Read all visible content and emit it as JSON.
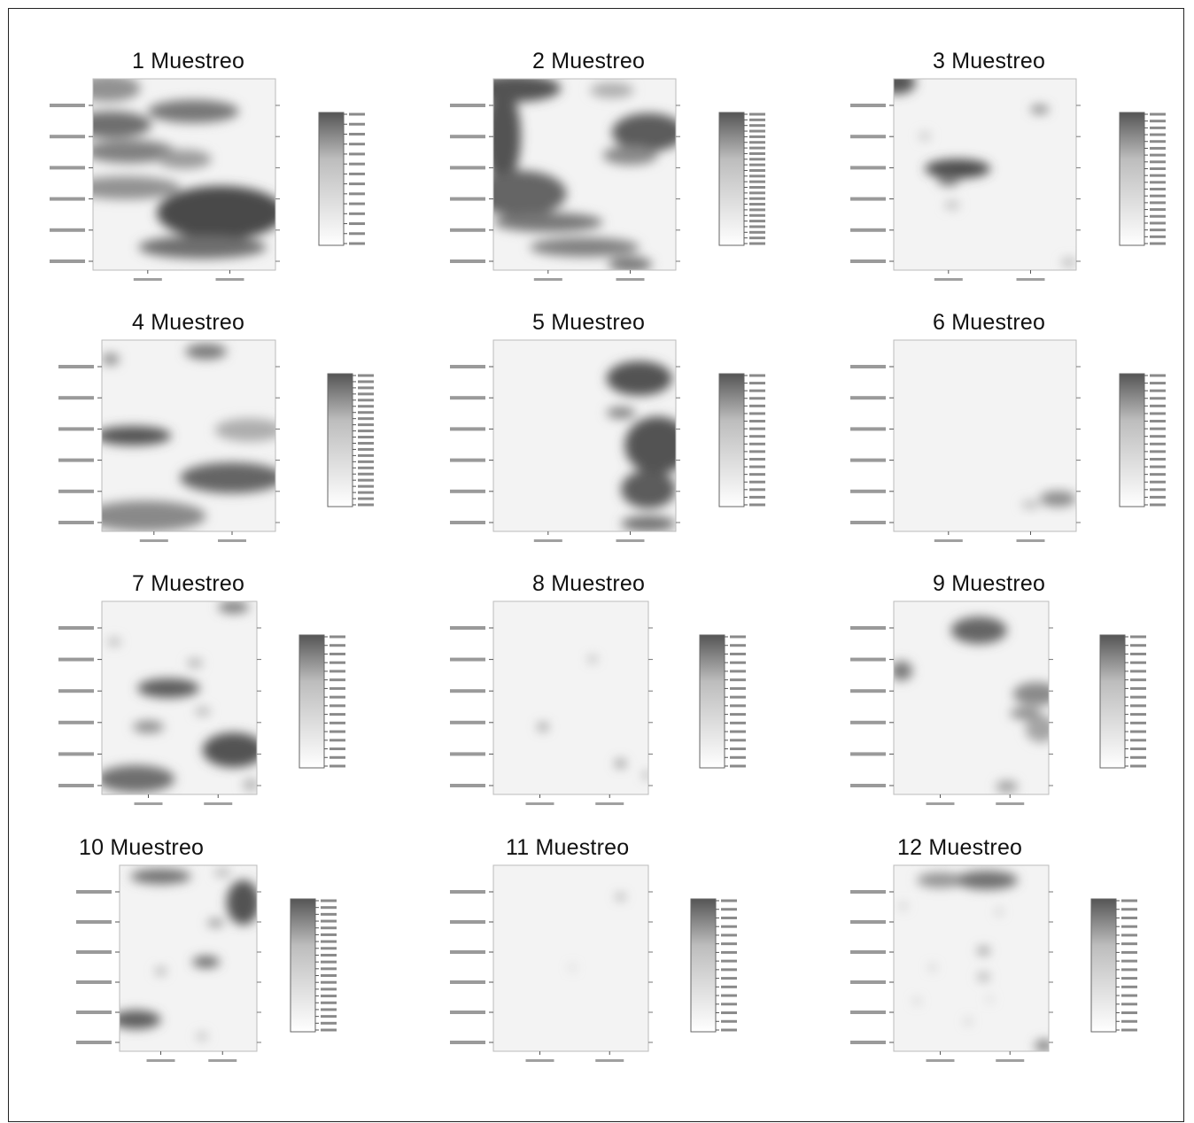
{
  "figure": {
    "panels": [
      {
        "title": "1 Muestreo"
      },
      {
        "title": "2 Muestreo"
      },
      {
        "title": "3 Muestreo"
      },
      {
        "title": "4 Muestreo"
      },
      {
        "title": "5 Muestreo"
      },
      {
        "title": "6 Muestreo"
      },
      {
        "title": "7 Muestreo"
      },
      {
        "title": "8 Muestreo"
      },
      {
        "title": "9 Muestreo"
      },
      {
        "title": "10 Muestreo"
      },
      {
        "title": "11 Muestreo"
      },
      {
        "title": "12 Muestreo"
      }
    ]
  },
  "chart_data": [
    {
      "type": "heatmap",
      "title": "1 Muestreo",
      "colormap": "white-to-dark-gray",
      "colorbar": {
        "ticks": 14
      },
      "blobs": [
        {
          "x": 0.08,
          "y": 0.05,
          "rx": 0.18,
          "ry": 0.07,
          "v": 0.55
        },
        {
          "x": 0.1,
          "y": 0.24,
          "rx": 0.22,
          "ry": 0.07,
          "v": 0.75
        },
        {
          "x": 0.55,
          "y": 0.17,
          "rx": 0.25,
          "ry": 0.06,
          "v": 0.7
        },
        {
          "x": 0.2,
          "y": 0.38,
          "rx": 0.25,
          "ry": 0.06,
          "v": 0.65
        },
        {
          "x": 0.5,
          "y": 0.42,
          "rx": 0.15,
          "ry": 0.05,
          "v": 0.5
        },
        {
          "x": 0.18,
          "y": 0.57,
          "rx": 0.3,
          "ry": 0.06,
          "v": 0.55
        },
        {
          "x": 0.7,
          "y": 0.7,
          "rx": 0.35,
          "ry": 0.14,
          "v": 0.95
        },
        {
          "x": 0.6,
          "y": 0.88,
          "rx": 0.35,
          "ry": 0.06,
          "v": 0.75
        }
      ]
    },
    {
      "type": "heatmap",
      "title": "2 Muestreo",
      "colormap": "white-to-dark-gray",
      "colorbar": {
        "ticks": 24
      },
      "blobs": [
        {
          "x": 0.12,
          "y": 0.05,
          "rx": 0.25,
          "ry": 0.07,
          "v": 0.9
        },
        {
          "x": 0.65,
          "y": 0.06,
          "rx": 0.12,
          "ry": 0.04,
          "v": 0.4
        },
        {
          "x": 0.05,
          "y": 0.3,
          "rx": 0.1,
          "ry": 0.25,
          "v": 0.9
        },
        {
          "x": 0.15,
          "y": 0.6,
          "rx": 0.25,
          "ry": 0.12,
          "v": 0.8
        },
        {
          "x": 0.85,
          "y": 0.28,
          "rx": 0.2,
          "ry": 0.1,
          "v": 0.85
        },
        {
          "x": 0.75,
          "y": 0.4,
          "rx": 0.15,
          "ry": 0.05,
          "v": 0.6
        },
        {
          "x": 0.3,
          "y": 0.75,
          "rx": 0.3,
          "ry": 0.05,
          "v": 0.7
        },
        {
          "x": 0.5,
          "y": 0.88,
          "rx": 0.3,
          "ry": 0.05,
          "v": 0.65
        },
        {
          "x": 0.75,
          "y": 0.97,
          "rx": 0.12,
          "ry": 0.04,
          "v": 0.7
        }
      ]
    },
    {
      "type": "heatmap",
      "title": "3 Muestreo",
      "colormap": "white-to-dark-gray",
      "colorbar": {
        "ticks": 20
      },
      "blobs": [
        {
          "x": 0.02,
          "y": 0.02,
          "rx": 0.1,
          "ry": 0.06,
          "v": 0.9
        },
        {
          "x": 0.8,
          "y": 0.16,
          "rx": 0.05,
          "ry": 0.02,
          "v": 0.7
        },
        {
          "x": 0.35,
          "y": 0.47,
          "rx": 0.18,
          "ry": 0.05,
          "v": 0.95
        },
        {
          "x": 0.3,
          "y": 0.53,
          "rx": 0.06,
          "ry": 0.03,
          "v": 0.7
        },
        {
          "x": 0.32,
          "y": 0.66,
          "rx": 0.04,
          "ry": 0.02,
          "v": 0.35
        },
        {
          "x": 0.17,
          "y": 0.3,
          "rx": 0.03,
          "ry": 0.02,
          "v": 0.3
        },
        {
          "x": 0.96,
          "y": 0.96,
          "rx": 0.04,
          "ry": 0.02,
          "v": 0.4
        }
      ]
    },
    {
      "type": "heatmap",
      "title": "4 Muestreo",
      "colormap": "white-to-dark-gray",
      "colorbar": {
        "ticks": 22
      },
      "blobs": [
        {
          "x": 0.05,
          "y": 0.1,
          "rx": 0.05,
          "ry": 0.03,
          "v": 0.6
        },
        {
          "x": 0.6,
          "y": 0.06,
          "rx": 0.12,
          "ry": 0.04,
          "v": 0.7
        },
        {
          "x": 0.18,
          "y": 0.5,
          "rx": 0.22,
          "ry": 0.05,
          "v": 0.9
        },
        {
          "x": 0.85,
          "y": 0.47,
          "rx": 0.2,
          "ry": 0.06,
          "v": 0.4
        },
        {
          "x": 0.75,
          "y": 0.72,
          "rx": 0.3,
          "ry": 0.08,
          "v": 0.8
        },
        {
          "x": 0.25,
          "y": 0.92,
          "rx": 0.35,
          "ry": 0.08,
          "v": 0.6
        }
      ]
    },
    {
      "type": "heatmap",
      "title": "5 Muestreo",
      "colormap": "white-to-dark-gray",
      "colorbar": {
        "ticks": 18
      },
      "blobs": [
        {
          "x": 0.8,
          "y": 0.2,
          "rx": 0.18,
          "ry": 0.09,
          "v": 0.9
        },
        {
          "x": 0.7,
          "y": 0.38,
          "rx": 0.08,
          "ry": 0.03,
          "v": 0.65
        },
        {
          "x": 0.9,
          "y": 0.55,
          "rx": 0.18,
          "ry": 0.15,
          "v": 0.9
        },
        {
          "x": 0.85,
          "y": 0.78,
          "rx": 0.15,
          "ry": 0.1,
          "v": 0.85
        },
        {
          "x": 0.85,
          "y": 0.96,
          "rx": 0.15,
          "ry": 0.04,
          "v": 0.75
        }
      ]
    },
    {
      "type": "heatmap",
      "title": "6 Muestreo",
      "colormap": "white-to-dark-gray",
      "colorbar": {
        "ticks": 18
      },
      "blobs": [
        {
          "x": 0.9,
          "y": 0.83,
          "rx": 0.1,
          "ry": 0.04,
          "v": 0.6
        },
        {
          "x": 0.75,
          "y": 0.86,
          "rx": 0.05,
          "ry": 0.02,
          "v": 0.35
        }
      ]
    },
    {
      "type": "heatmap",
      "title": "7 Muestreo",
      "colormap": "white-to-dark-gray",
      "colorbar": {
        "ticks": 16
      },
      "blobs": [
        {
          "x": 0.85,
          "y": 0.03,
          "rx": 0.1,
          "ry": 0.03,
          "v": 0.7
        },
        {
          "x": 0.08,
          "y": 0.21,
          "rx": 0.04,
          "ry": 0.02,
          "v": 0.4
        },
        {
          "x": 0.6,
          "y": 0.32,
          "rx": 0.05,
          "ry": 0.02,
          "v": 0.45
        },
        {
          "x": 0.43,
          "y": 0.45,
          "rx": 0.2,
          "ry": 0.05,
          "v": 0.85
        },
        {
          "x": 0.3,
          "y": 0.65,
          "rx": 0.1,
          "ry": 0.03,
          "v": 0.6
        },
        {
          "x": 0.65,
          "y": 0.57,
          "rx": 0.05,
          "ry": 0.02,
          "v": 0.4
        },
        {
          "x": 0.85,
          "y": 0.77,
          "rx": 0.2,
          "ry": 0.09,
          "v": 0.9
        },
        {
          "x": 0.22,
          "y": 0.92,
          "rx": 0.25,
          "ry": 0.07,
          "v": 0.75
        },
        {
          "x": 0.96,
          "y": 0.95,
          "rx": 0.05,
          "ry": 0.03,
          "v": 0.4
        }
      ]
    },
    {
      "type": "heatmap",
      "title": "8 Muestreo",
      "colormap": "white-to-dark-gray",
      "colorbar": {
        "ticks": 16
      },
      "blobs": [
        {
          "x": 0.64,
          "y": 0.3,
          "rx": 0.025,
          "ry": 0.015,
          "v": 0.55
        },
        {
          "x": 0.32,
          "y": 0.65,
          "rx": 0.035,
          "ry": 0.02,
          "v": 0.6
        },
        {
          "x": 0.82,
          "y": 0.84,
          "rx": 0.035,
          "ry": 0.02,
          "v": 0.65
        },
        {
          "x": 0.99,
          "y": 0.9,
          "rx": 0.02,
          "ry": 0.02,
          "v": 0.6
        }
      ]
    },
    {
      "type": "heatmap",
      "title": "9 Muestreo",
      "colormap": "white-to-dark-gray",
      "colorbar": {
        "ticks": 16
      },
      "blobs": [
        {
          "x": 0.55,
          "y": 0.15,
          "rx": 0.18,
          "ry": 0.07,
          "v": 0.8
        },
        {
          "x": 0.05,
          "y": 0.36,
          "rx": 0.07,
          "ry": 0.05,
          "v": 0.7
        },
        {
          "x": 0.92,
          "y": 0.48,
          "rx": 0.15,
          "ry": 0.06,
          "v": 0.6
        },
        {
          "x": 0.85,
          "y": 0.58,
          "rx": 0.1,
          "ry": 0.03,
          "v": 0.6
        },
        {
          "x": 0.95,
          "y": 0.66,
          "rx": 0.1,
          "ry": 0.07,
          "v": 0.45
        },
        {
          "x": 0.73,
          "y": 0.96,
          "rx": 0.07,
          "ry": 0.03,
          "v": 0.5
        }
      ]
    },
    {
      "type": "heatmap",
      "title": "10 Muestreo",
      "colormap": "white-to-dark-gray",
      "colorbar": {
        "ticks": 20
      },
      "blobs": [
        {
          "x": 0.3,
          "y": 0.06,
          "rx": 0.22,
          "ry": 0.04,
          "v": 0.75
        },
        {
          "x": 0.75,
          "y": 0.04,
          "rx": 0.06,
          "ry": 0.02,
          "v": 0.4
        },
        {
          "x": 0.9,
          "y": 0.2,
          "rx": 0.12,
          "ry": 0.12,
          "v": 0.9
        },
        {
          "x": 0.7,
          "y": 0.31,
          "rx": 0.06,
          "ry": 0.02,
          "v": 0.6
        },
        {
          "x": 0.63,
          "y": 0.52,
          "rx": 0.1,
          "ry": 0.03,
          "v": 0.8
        },
        {
          "x": 0.3,
          "y": 0.57,
          "rx": 0.04,
          "ry": 0.02,
          "v": 0.45
        },
        {
          "x": 0.12,
          "y": 0.83,
          "rx": 0.18,
          "ry": 0.05,
          "v": 0.85
        },
        {
          "x": 0.6,
          "y": 0.92,
          "rx": 0.04,
          "ry": 0.02,
          "v": 0.35
        }
      ]
    },
    {
      "type": "heatmap",
      "title": "11 Muestreo",
      "colormap": "white-to-dark-gray",
      "colorbar": {
        "ticks": 16
      },
      "blobs": [
        {
          "x": 0.82,
          "y": 0.17,
          "rx": 0.03,
          "ry": 0.015,
          "v": 0.6
        },
        {
          "x": 0.51,
          "y": 0.55,
          "rx": 0.015,
          "ry": 0.01,
          "v": 0.3
        }
      ]
    },
    {
      "type": "heatmap",
      "title": "12 Muestreo",
      "colormap": "white-to-dark-gray",
      "colorbar": {
        "ticks": 16
      },
      "blobs": [
        {
          "x": 0.3,
          "y": 0.08,
          "rx": 0.15,
          "ry": 0.04,
          "v": 0.55
        },
        {
          "x": 0.6,
          "y": 0.08,
          "rx": 0.2,
          "ry": 0.05,
          "v": 0.75
        },
        {
          "x": 0.06,
          "y": 0.22,
          "rx": 0.025,
          "ry": 0.015,
          "v": 0.35
        },
        {
          "x": 0.68,
          "y": 0.25,
          "rx": 0.02,
          "ry": 0.015,
          "v": 0.4
        },
        {
          "x": 0.58,
          "y": 0.46,
          "rx": 0.04,
          "ry": 0.02,
          "v": 0.6
        },
        {
          "x": 0.25,
          "y": 0.55,
          "rx": 0.02,
          "ry": 0.015,
          "v": 0.35
        },
        {
          "x": 0.58,
          "y": 0.6,
          "rx": 0.04,
          "ry": 0.02,
          "v": 0.45
        },
        {
          "x": 0.15,
          "y": 0.73,
          "rx": 0.02,
          "ry": 0.015,
          "v": 0.35
        },
        {
          "x": 0.62,
          "y": 0.72,
          "rx": 0.015,
          "ry": 0.01,
          "v": 0.3
        },
        {
          "x": 0.48,
          "y": 0.84,
          "rx": 0.02,
          "ry": 0.015,
          "v": 0.35
        },
        {
          "x": 0.97,
          "y": 0.97,
          "rx": 0.06,
          "ry": 0.03,
          "v": 0.7
        }
      ]
    }
  ]
}
